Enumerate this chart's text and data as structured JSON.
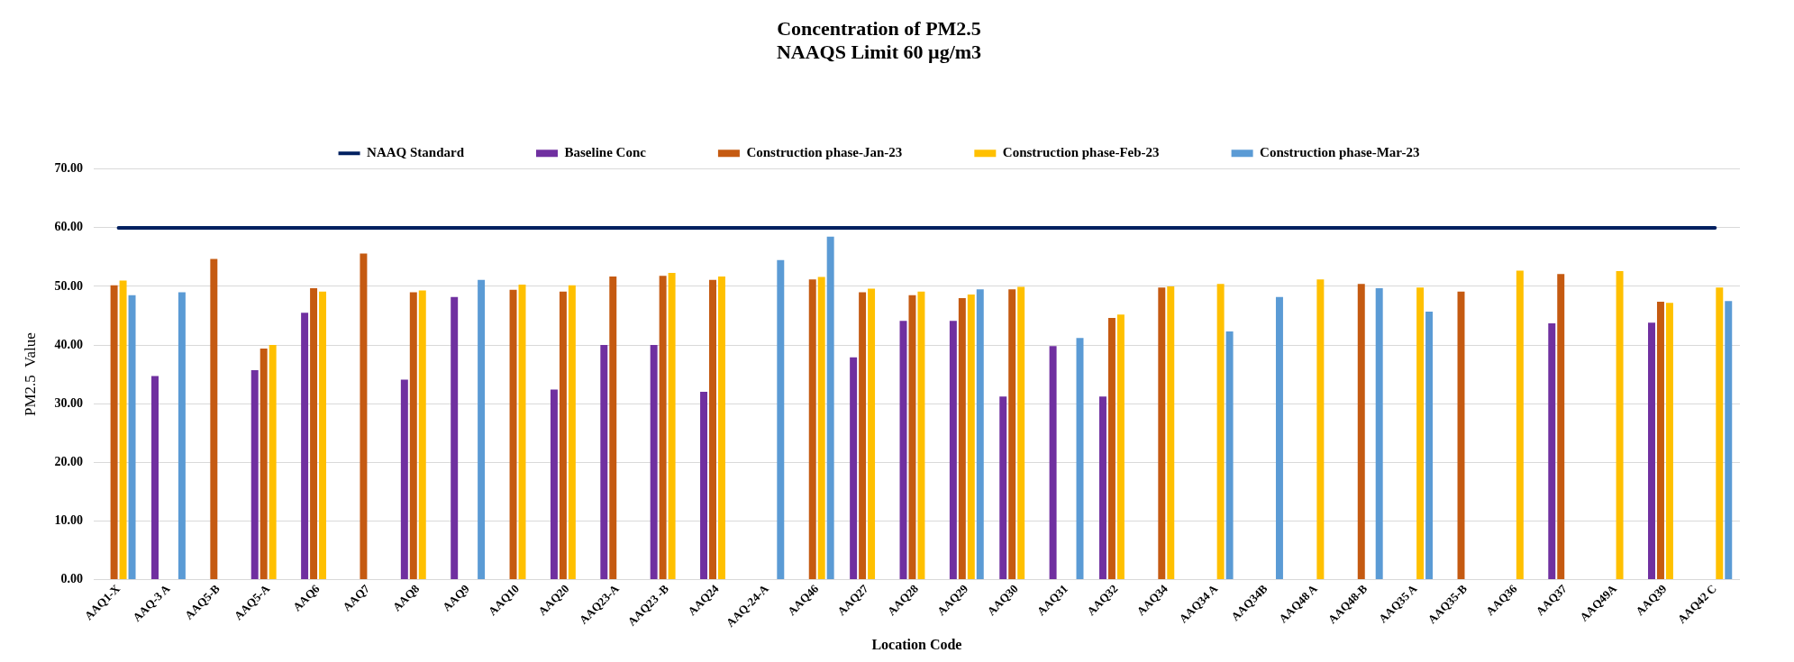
{
  "chart_data": {
    "type": "bar",
    "title": "Concentration of PM2.5",
    "subtitle": "NAAQS Limit 60 µg/m3",
    "xlabel": "Location Code",
    "ylabel": "PM2.5  Value",
    "categories": [
      "AAQ1-X",
      "AAQ-3 A",
      "AAQ5-B",
      "AAQ5-A",
      "AAQ6",
      "AAQ7",
      "AAQ8",
      "AAQ9",
      "AAQ10",
      "AAQ20",
      "AAQ23-A",
      "AAQ23 -B",
      "AAQ24",
      "AAQ-24-A",
      "AAQ46",
      "AAQ27",
      "AAQ28",
      "AAQ29",
      "AAQ30",
      "AAQ31",
      "AAQ32",
      "AAQ34",
      "AAQ34 A",
      "AAQ34B",
      "AAQ48 A",
      "AAQ48-B",
      "AAQ35 A",
      "AAQ35-B",
      "AAQ36",
      "AAQ37",
      "AAQ49A",
      "AAQ39",
      "AAQ42 C"
    ],
    "series": [
      {
        "name": "Baseline Conc",
        "color": "#7030a0",
        "values": [
          null,
          34.7,
          null,
          35.7,
          45.5,
          null,
          34.1,
          48.2,
          null,
          32.4,
          40.0,
          40.0,
          32.0,
          null,
          null,
          37.9,
          44.1,
          44.1,
          31.2,
          39.8,
          31.2,
          null,
          null,
          null,
          null,
          null,
          null,
          null,
          null,
          43.7,
          null,
          43.8,
          null
        ]
      },
      {
        "name": "Construction phase-Jan-23",
        "color": "#c55a11",
        "values": [
          50.2,
          null,
          54.7,
          39.4,
          49.7,
          55.6,
          49.0,
          null,
          49.4,
          49.1,
          51.7,
          51.8,
          51.1,
          null,
          51.2,
          49.0,
          48.5,
          48.0,
          49.5,
          null,
          44.6,
          49.8,
          null,
          null,
          null,
          50.4,
          null,
          49.1,
          null,
          52.1,
          null,
          47.4,
          null
        ]
      },
      {
        "name": "Construction phase-Feb-23",
        "color": "#ffc000",
        "values": [
          51.0,
          null,
          null,
          40.0,
          49.1,
          null,
          49.3,
          null,
          50.3,
          50.2,
          null,
          52.3,
          51.7,
          null,
          51.6,
          49.6,
          49.1,
          48.6,
          49.9,
          null,
          45.2,
          50.0,
          50.4,
          null,
          51.2,
          null,
          49.8,
          null,
          52.7,
          null,
          52.6,
          47.2,
          49.8
        ]
      },
      {
        "name": "Construction phase-Mar-23",
        "color": "#5b9bd5",
        "values": [
          48.5,
          49.0,
          null,
          null,
          null,
          null,
          null,
          51.1,
          null,
          null,
          null,
          null,
          null,
          54.5,
          58.5,
          null,
          null,
          49.5,
          null,
          41.2,
          null,
          null,
          42.3,
          48.2,
          null,
          49.7,
          45.7,
          null,
          null,
          null,
          null,
          null,
          47.5
        ]
      },
      {
        "name": "NAAQ Standard",
        "type": "line",
        "color": "#002060",
        "values": [
          60,
          60,
          60,
          60,
          60,
          60,
          60,
          60,
          60,
          60,
          60,
          60,
          60,
          60,
          60,
          60,
          60,
          60,
          60,
          60,
          60,
          60,
          60,
          60,
          60,
          60,
          60,
          60,
          60,
          60,
          60,
          60,
          60
        ]
      }
    ],
    "ylim": [
      0,
      70
    ],
    "yticks": [
      {
        "value": 0,
        "label": "0.00"
      },
      {
        "value": 10,
        "label": "10.00"
      },
      {
        "value": 20,
        "label": "20.00"
      },
      {
        "value": 30,
        "label": "30.00"
      },
      {
        "value": 40,
        "label": "40.00"
      },
      {
        "value": 50,
        "label": "50.00"
      },
      {
        "value": 60,
        "label": "60.00"
      },
      {
        "value": 70,
        "label": "70.00"
      }
    ],
    "grid": "y",
    "legend": "top",
    "marker": "none"
  }
}
